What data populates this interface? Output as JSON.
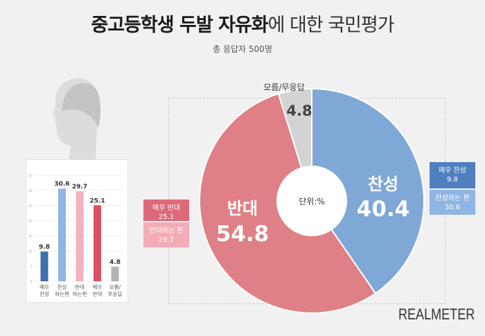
{
  "title": {
    "bold": "중고등학생 두발 자유화",
    "rest": "에 대한 국민평가"
  },
  "subtitle": "총 응답자 500명",
  "brand": "REALMETER",
  "colors": {
    "approve": "#7fa8d6",
    "oppose": "#df8086",
    "none": "#d3d3d3"
  },
  "chart_data": [
    {
      "type": "pie",
      "center_label": "단위:%",
      "slices": [
        {
          "name": "찬성",
          "value": 40.4,
          "color": "#7fa8d6"
        },
        {
          "name": "반대",
          "value": 54.8,
          "color": "#df8086"
        },
        {
          "name": "모름/무응답",
          "value": 4.8,
          "color": "#d3d3d3"
        }
      ],
      "breakdown": {
        "approve": [
          {
            "label": "매우 찬성",
            "value": "9.8",
            "color": "#4f7fbf"
          },
          {
            "label": "찬성하는 편",
            "value": "30.6",
            "color": "#8fb5e3"
          }
        ],
        "oppose": [
          {
            "label": "매우 반대",
            "value": "25.1",
            "color": "#dc6a79"
          },
          {
            "label": "반대하는 편",
            "value": "29.7",
            "color": "#f0a5b0"
          }
        ]
      }
    },
    {
      "type": "bar",
      "categories": [
        [
          "매우",
          "찬성"
        ],
        [
          "찬성",
          "하는편"
        ],
        [
          "반대",
          "하는편"
        ],
        [
          "매우",
          "반대"
        ],
        [
          "모름/",
          "무응답"
        ]
      ],
      "values": [
        9.8,
        30.6,
        29.7,
        25.1,
        4.8
      ],
      "colors": [
        "#3e6fb3",
        "#8fb5e3",
        "#f4b2bd",
        "#dc5064",
        "#b3b3b3"
      ],
      "ylim": [
        0,
        35
      ],
      "yticks": [
        0,
        5,
        10,
        15,
        20,
        25,
        30,
        35
      ]
    }
  ]
}
